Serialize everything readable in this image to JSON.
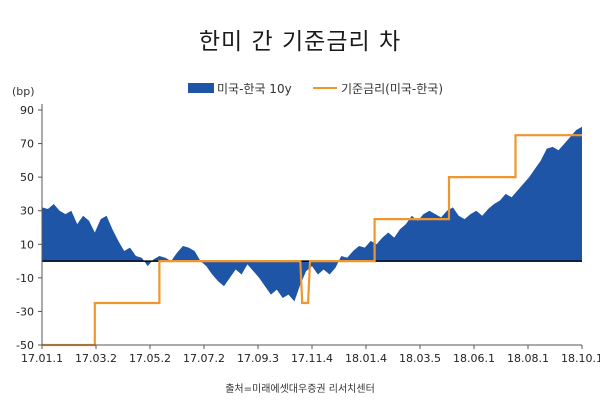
{
  "chart_data": {
    "type": "area",
    "title": "한미 간 기준금리 차",
    "unit_label": "(bp)",
    "source": "출처=미래에셋대우증권 리서치센터",
    "ylim": [
      -50,
      90
    ],
    "yticks": [
      90,
      70,
      50,
      30,
      10,
      -10,
      -30,
      -50
    ],
    "xtick_labels": [
      "17.01.1",
      "17.03.2",
      "17.05.2",
      "17.07.2",
      "17.09.3",
      "17.11.4",
      "18.01.4",
      "18.03.5",
      "18.06.1",
      "18.08.1",
      "18.10.1"
    ],
    "legend_placement": "top",
    "colors": {
      "area": "#1f55a6",
      "line": "#f0962e",
      "axis": "#000000"
    },
    "series": [
      {
        "name": "미국-한국 10y",
        "type": "area",
        "points": [
          [
            0.0,
            32
          ],
          [
            0.3,
            31
          ],
          [
            0.6,
            34
          ],
          [
            0.9,
            30
          ],
          [
            1.2,
            28
          ],
          [
            1.5,
            30
          ],
          [
            1.8,
            22
          ],
          [
            2.1,
            27
          ],
          [
            2.4,
            24
          ],
          [
            2.7,
            17
          ],
          [
            3.0,
            25
          ],
          [
            3.3,
            27
          ],
          [
            3.6,
            19
          ],
          [
            3.9,
            12
          ],
          [
            4.2,
            6
          ],
          [
            4.5,
            8
          ],
          [
            4.8,
            3
          ],
          [
            5.1,
            2
          ],
          [
            5.4,
            -3
          ],
          [
            5.7,
            1
          ],
          [
            6.0,
            3
          ],
          [
            6.3,
            2
          ],
          [
            6.6,
            0
          ],
          [
            6.9,
            5
          ],
          [
            7.2,
            9
          ],
          [
            7.5,
            8
          ],
          [
            7.8,
            6
          ],
          [
            8.1,
            0
          ],
          [
            8.4,
            -3
          ],
          [
            8.7,
            -8
          ],
          [
            9.0,
            -12
          ],
          [
            9.3,
            -15
          ],
          [
            9.6,
            -10
          ],
          [
            9.9,
            -5
          ],
          [
            10.2,
            -8
          ],
          [
            10.5,
            -2
          ],
          [
            10.8,
            -6
          ],
          [
            11.1,
            -10
          ],
          [
            11.4,
            -15
          ],
          [
            11.7,
            -20
          ],
          [
            12.0,
            -17
          ],
          [
            12.3,
            -22
          ],
          [
            12.6,
            -20
          ],
          [
            12.9,
            -24
          ],
          [
            13.2,
            -14
          ],
          [
            13.5,
            -6
          ],
          [
            13.8,
            -3
          ],
          [
            14.1,
            -8
          ],
          [
            14.4,
            -5
          ],
          [
            14.7,
            -8
          ],
          [
            15.0,
            -4
          ],
          [
            15.3,
            3
          ],
          [
            15.6,
            2
          ],
          [
            15.9,
            6
          ],
          [
            16.2,
            9
          ],
          [
            16.5,
            8
          ],
          [
            16.8,
            12
          ],
          [
            17.1,
            10
          ],
          [
            17.4,
            14
          ],
          [
            17.7,
            17
          ],
          [
            18.0,
            14
          ],
          [
            18.3,
            19
          ],
          [
            18.6,
            22
          ],
          [
            18.9,
            27
          ],
          [
            19.2,
            24
          ],
          [
            19.5,
            28
          ],
          [
            19.8,
            30
          ],
          [
            20.1,
            28
          ],
          [
            20.4,
            26
          ],
          [
            20.7,
            30
          ],
          [
            21.0,
            32
          ],
          [
            21.3,
            27
          ],
          [
            21.6,
            25
          ],
          [
            21.9,
            28
          ],
          [
            22.2,
            30
          ],
          [
            22.5,
            27
          ],
          [
            22.8,
            31
          ],
          [
            23.1,
            34
          ],
          [
            23.4,
            36
          ],
          [
            23.7,
            40
          ],
          [
            24.0,
            38
          ],
          [
            24.3,
            42
          ],
          [
            24.6,
            46
          ],
          [
            24.9,
            50
          ],
          [
            25.2,
            55
          ],
          [
            25.5,
            60
          ],
          [
            25.8,
            67
          ],
          [
            26.1,
            68
          ],
          [
            26.4,
            66
          ],
          [
            26.7,
            70
          ],
          [
            27.0,
            74
          ],
          [
            27.3,
            78
          ],
          [
            27.6,
            80
          ]
        ]
      },
      {
        "name": "기준금리(미국-한국)",
        "type": "step",
        "points": [
          [
            0.0,
            -50
          ],
          [
            2.7,
            -50
          ],
          [
            2.7,
            -25
          ],
          [
            6.0,
            -25
          ],
          [
            6.0,
            0
          ],
          [
            13.2,
            0
          ],
          [
            13.3,
            -25
          ],
          [
            13.6,
            -25
          ],
          [
            13.7,
            0
          ],
          [
            17.0,
            0
          ],
          [
            17.0,
            25
          ],
          [
            20.8,
            25
          ],
          [
            20.8,
            50
          ],
          [
            24.2,
            50
          ],
          [
            24.2,
            75
          ],
          [
            27.6,
            75
          ]
        ]
      }
    ]
  }
}
